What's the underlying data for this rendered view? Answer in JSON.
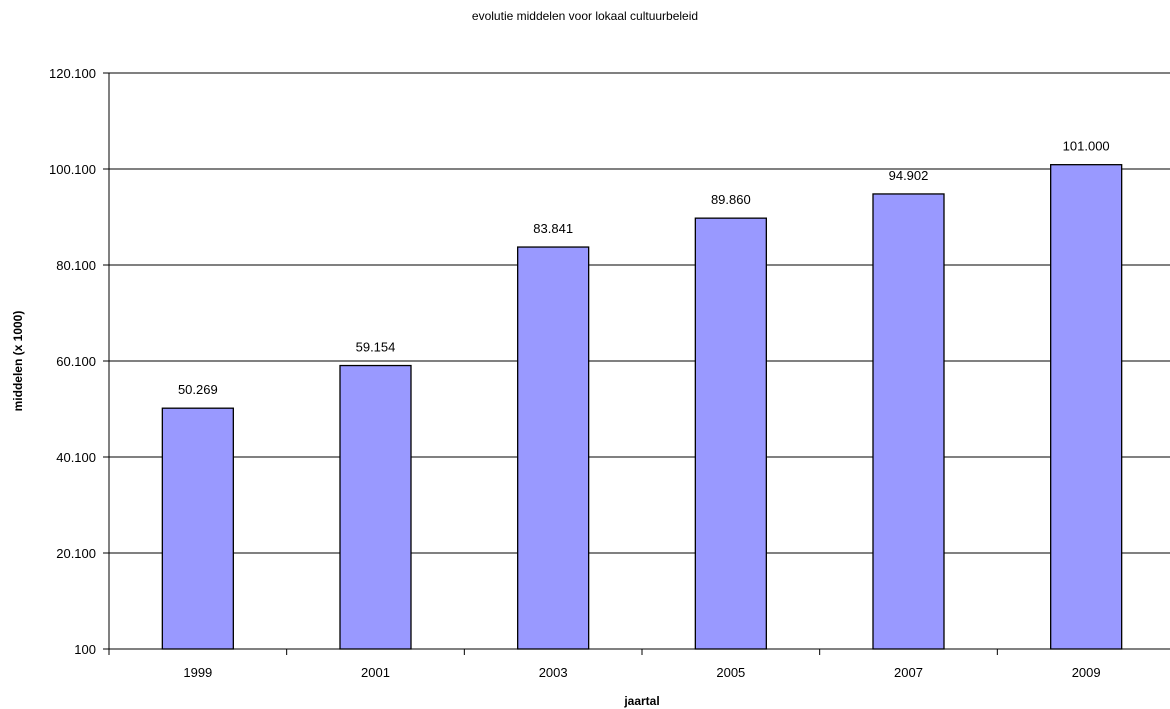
{
  "chart_data": {
    "type": "bar",
    "title": "evolutie middelen voor lokaal cultuurbeleid",
    "xlabel": "jaartal",
    "ylabel": "middelen (x 1000)",
    "categories": [
      "1999",
      "2001",
      "2003",
      "2005",
      "2007",
      "2009"
    ],
    "values": [
      50269,
      59154,
      83841,
      89860,
      94902,
      101000
    ],
    "value_labels": [
      "50.269",
      "59.154",
      "83.841",
      "89.860",
      "94.902",
      "101.000"
    ],
    "y_ticks": [
      100,
      20100,
      40100,
      60100,
      80100,
      100100,
      120100
    ],
    "y_tick_labels": [
      "100",
      "20.100",
      "40.100",
      "60.100",
      "80.100",
      "100.100",
      "120.100"
    ],
    "ylim": [
      100,
      120100
    ],
    "grid": true,
    "legend": "none",
    "colors": {
      "bar_fill": "#9999ff",
      "bar_stroke": "#000000",
      "grid": "#000000"
    }
  }
}
